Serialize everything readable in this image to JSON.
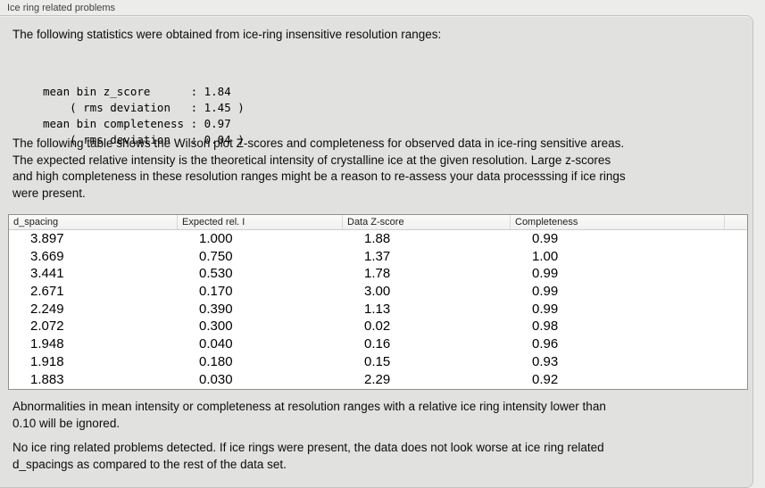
{
  "window": {
    "group_label": "Ice ring related problems"
  },
  "intro": {
    "text": "The following statistics were obtained from ice-ring insensitive resolution ranges:"
  },
  "stats_block": {
    "lines": [
      "mean bin z_score      : 1.84",
      "    ( rms deviation   : 1.45 )",
      "mean bin completeness : 0.97",
      "    ( rms deviation   : 0.04 )"
    ]
  },
  "description": {
    "lines": [
      "The following table shows the Wilson plot Z-scores and completeness for observed data in ice-ring sensitive areas.",
      "The expected relative intensity is the theoretical intensity of crystalline ice at the given resolution. Large z-scores",
      "and high completeness in these resolution ranges might be a reason to re-assess your data processsing if ice rings",
      "were present."
    ]
  },
  "table": {
    "columns": [
      "d_spacing",
      "Expected rel. I",
      "Data Z-score",
      "Completeness"
    ],
    "rows": [
      [
        "3.897",
        "1.000",
        "1.88",
        "0.99"
      ],
      [
        "3.669",
        "0.750",
        "1.37",
        "1.00"
      ],
      [
        "3.441",
        "0.530",
        "1.78",
        "0.99"
      ],
      [
        "2.671",
        "0.170",
        "3.00",
        "0.99"
      ],
      [
        "2.249",
        "0.390",
        "1.13",
        "0.99"
      ],
      [
        "2.072",
        "0.300",
        "0.02",
        "0.98"
      ],
      [
        "1.948",
        "0.040",
        "0.16",
        "0.96"
      ],
      [
        "1.918",
        "0.180",
        "0.15",
        "0.93"
      ],
      [
        "1.883",
        "0.030",
        "2.29",
        "0.92"
      ]
    ]
  },
  "notes": {
    "ignore_note_lines": [
      "Abnormalities in mean intensity or completeness at resolution ranges with a relative ice ring intensity lower than",
      "0.10 will be ignored."
    ],
    "result_note_lines": [
      "No ice ring related problems detected. If ice rings were present, the data does not look worse at ice ring related",
      "d_spacings as compared to the rest of the data set."
    ]
  },
  "colors": {
    "outer_background": "#ececeb",
    "panel_background": "#e1e1e0",
    "panel_border": "#c3c3c2",
    "table_border": "#8f8f8f",
    "table_header_background": "#f5f5f4"
  }
}
